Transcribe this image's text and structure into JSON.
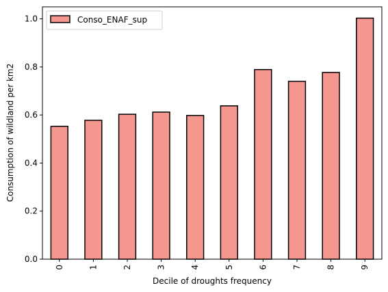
{
  "chart_data": {
    "type": "bar",
    "categories": [
      "0",
      "1",
      "2",
      "3",
      "4",
      "5",
      "6",
      "7",
      "8",
      "9"
    ],
    "series": [
      {
        "name": "Conso_ENAF_sup",
        "values": [
          0.553,
          0.578,
          0.603,
          0.612,
          0.598,
          0.638,
          0.789,
          0.74,
          0.777,
          1.003
        ],
        "color": "#f4978e",
        "edge_color": "#000000"
      }
    ],
    "xlabel": "Decile of droughts frequency",
    "ylabel": "Consumption of wildland per km2",
    "ylim": [
      0,
      1.05
    ],
    "yticks": [
      "0.0",
      "0.2",
      "0.4",
      "0.6",
      "0.8",
      "1.0"
    ],
    "grid": false,
    "legend": {
      "position": "top-left",
      "entries": [
        "Conso_ENAF_sup"
      ]
    }
  }
}
